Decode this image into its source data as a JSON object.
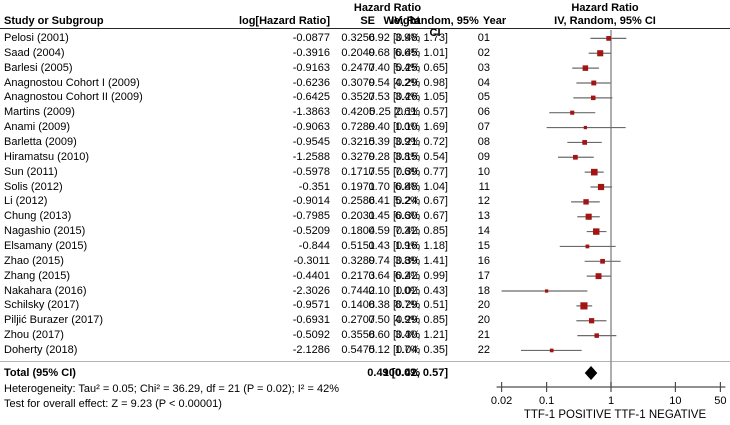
{
  "figure": {
    "columns": {
      "hr_header": "Hazard Ratio",
      "study": "Study or Subgroup",
      "log_hr": "log[Hazard Ratio]",
      "se": "SE",
      "weight": "Weight",
      "ci_method": "IV, Random, 95% CI",
      "year": "Year"
    },
    "total": {
      "label": "Total (95% CI)",
      "weight": "100.0%",
      "ci_text": "0.49 [0.42, 0.57]"
    },
    "footer": {
      "heterogeneity": "Heterogeneity: Tau² = 0.05; Chi² = 36.29, df = 21 (P = 0.02); I² = 42%",
      "overall_effect": "Test for overall effect: Z = 9.23 (P < 0.00001)"
    }
  },
  "chart_data": {
    "type": "forest",
    "x_scale": "log",
    "x_ticks": [
      0.02,
      0.1,
      1,
      10,
      50
    ],
    "xlim": [
      0.02,
      50
    ],
    "reference_value": 1,
    "axis_label_left": "TTF-1 POSITIVE",
    "axis_label_right": "TTF-1 NEGATIVE",
    "colors": {
      "marker": "#a31515",
      "ci_line": "#6b6b6b",
      "ref_line": "#8c8c8c",
      "axis_line": "#4d4d4d",
      "diamond": "#000000"
    },
    "studies": [
      {
        "name": "Pelosi (2001)",
        "log_hr": "-0.0877",
        "se": "0.3256",
        "weight": "3.9%",
        "ci_text": "0.92 [0.48, 1.73]",
        "year": "01",
        "hr": 0.92,
        "lo": 0.48,
        "hi": 1.73
      },
      {
        "name": "Saad (2004)",
        "log_hr": "-0.3916",
        "se": "0.2049",
        "weight": "6.6%",
        "ci_text": "0.68 [0.45, 1.01]",
        "year": "02",
        "hr": 0.68,
        "lo": 0.45,
        "hi": 1.01
      },
      {
        "name": "Barlesi (2005)",
        "log_hr": "-0.9163",
        "se": "0.2477",
        "weight": "5.4%",
        "ci_text": "0.40 [0.25, 0.65]",
        "year": "03",
        "hr": 0.4,
        "lo": 0.25,
        "hi": 0.65
      },
      {
        "name": "Anagnostou Cohort I (2009)",
        "log_hr": "-0.6236",
        "se": "0.3079",
        "weight": "4.2%",
        "ci_text": "0.54 [0.29, 0.98]",
        "year": "04",
        "hr": 0.54,
        "lo": 0.29,
        "hi": 0.98
      },
      {
        "name": "Anagnostou Cohort II (2009)",
        "log_hr": "-0.6425",
        "se": "0.3527",
        "weight": "3.4%",
        "ci_text": "0.53 [0.26, 1.05]",
        "year": "05",
        "hr": 0.53,
        "lo": 0.26,
        "hi": 1.05
      },
      {
        "name": "Martins (2009)",
        "log_hr": "-1.3863",
        "se": "0.4205",
        "weight": "2.6%",
        "ci_text": "0.25 [0.11, 0.57]",
        "year": "06",
        "hr": 0.25,
        "lo": 0.11,
        "hi": 0.57
      },
      {
        "name": "Anami (2009)",
        "log_hr": "-0.9063",
        "se": "0.7289",
        "weight": "1.0%",
        "ci_text": "0.40 [0.10, 1.69]",
        "year": "07",
        "hr": 0.4,
        "lo": 0.1,
        "hi": 1.69
      },
      {
        "name": "Barletta (2009)",
        "log_hr": "-0.9545",
        "se": "0.3215",
        "weight": "3.9%",
        "ci_text": "0.39 [0.21, 0.72]",
        "year": "08",
        "hr": 0.39,
        "lo": 0.21,
        "hi": 0.72
      },
      {
        "name": "Hiramatsu (2010)",
        "log_hr": "-1.2588",
        "se": "0.3279",
        "weight": "3.8%",
        "ci_text": "0.28 [0.15, 0.54]",
        "year": "09",
        "hr": 0.28,
        "lo": 0.15,
        "hi": 0.54
      },
      {
        "name": "Sun (2011)",
        "log_hr": "-0.5978",
        "se": "0.1717",
        "weight": "7.6%",
        "ci_text": "0.55 [0.39, 0.77]",
        "year": "10",
        "hr": 0.55,
        "lo": 0.39,
        "hi": 0.77
      },
      {
        "name": "Solis (2012)",
        "log_hr": "-0.351",
        "se": "0.1971",
        "weight": "6.8%",
        "ci_text": "0.70 [0.48, 1.04]",
        "year": "11",
        "hr": 0.7,
        "lo": 0.48,
        "hi": 1.04
      },
      {
        "name": "Li (2012)",
        "log_hr": "-0.9014",
        "se": "0.2586",
        "weight": "5.2%",
        "ci_text": "0.41 [0.24, 0.67]",
        "year": "12",
        "hr": 0.41,
        "lo": 0.24,
        "hi": 0.67
      },
      {
        "name": "Chung (2013)",
        "log_hr": "-0.7985",
        "se": "0.2031",
        "weight": "6.6%",
        "ci_text": "0.45 [0.30, 0.67]",
        "year": "13",
        "hr": 0.45,
        "lo": 0.3,
        "hi": 0.67
      },
      {
        "name": "Nagashio (2015)",
        "log_hr": "-0.5209",
        "se": "0.1804",
        "weight": "7.3%",
        "ci_text": "0.59 [0.42, 0.85]",
        "year": "14",
        "hr": 0.59,
        "lo": 0.42,
        "hi": 0.85
      },
      {
        "name": "Elsamany (2015)",
        "log_hr": "-0.844",
        "se": "0.5151",
        "weight": "1.9%",
        "ci_text": "0.43 [0.16, 1.18]",
        "year": "15",
        "hr": 0.43,
        "lo": 0.16,
        "hi": 1.18
      },
      {
        "name": "Zhao (2015)",
        "log_hr": "-0.3011",
        "se": "0.3289",
        "weight": "3.8%",
        "ci_text": "0.74 [0.39, 1.41]",
        "year": "16",
        "hr": 0.74,
        "lo": 0.39,
        "hi": 1.41
      },
      {
        "name": "Zhang (2015)",
        "log_hr": "-0.4401",
        "se": "0.2173",
        "weight": "6.2%",
        "ci_text": "0.64 [0.42, 0.99]",
        "year": "17",
        "hr": 0.64,
        "lo": 0.42,
        "hi": 0.99
      },
      {
        "name": "Nakahara (2016)",
        "log_hr": "-2.3026",
        "se": "0.7442",
        "weight": "1.0%",
        "ci_text": "0.10 [0.02, 0.43]",
        "year": "18",
        "hr": 0.1,
        "lo": 0.02,
        "hi": 0.43
      },
      {
        "name": "Schilsky (2017)",
        "log_hr": "-0.9571",
        "se": "0.1408",
        "weight": "8.7%",
        "ci_text": "0.38 [0.29, 0.51]",
        "year": "20",
        "hr": 0.38,
        "lo": 0.29,
        "hi": 0.51
      },
      {
        "name": "Piljić Burazer (2017)",
        "log_hr": "-0.6931",
        "se": "0.2707",
        "weight": "4.9%",
        "ci_text": "0.50 [0.29, 0.85]",
        "year": "20",
        "hr": 0.5,
        "lo": 0.29,
        "hi": 0.85
      },
      {
        "name": "Zhou (2017)",
        "log_hr": "-0.5092",
        "se": "0.3558",
        "weight": "3.4%",
        "ci_text": "0.60 [0.30, 1.21]",
        "year": "21",
        "hr": 0.6,
        "lo": 0.3,
        "hi": 1.21
      },
      {
        "name": "Doherty (2018)",
        "log_hr": "-2.1286",
        "se": "0.5475",
        "weight": "1.7%",
        "ci_text": "0.12 [0.04, 0.35]",
        "year": "22",
        "hr": 0.12,
        "lo": 0.04,
        "hi": 0.35
      }
    ],
    "total": {
      "hr": 0.49,
      "lo": 0.42,
      "hi": 0.57
    }
  }
}
